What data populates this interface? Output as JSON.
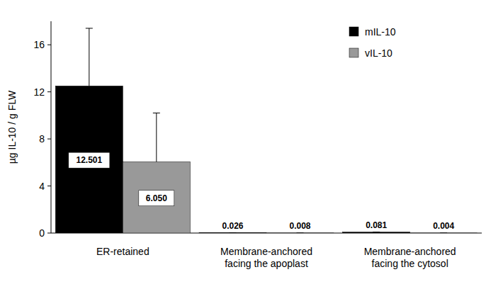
{
  "chart_data": {
    "type": "bar",
    "y_label": "µg IL-10 / g FLW",
    "categories": [
      "ER-retained",
      "Membrane-anchored facing the apoplast",
      "Membrane-anchored facing the cytosol"
    ],
    "series": [
      {
        "name": "mIL-10",
        "color": "#000000",
        "values": [
          12.501,
          0.026,
          0.081
        ],
        "value_labels": [
          "12.501",
          "0.026",
          "0.081"
        ],
        "errors": [
          4.9,
          0,
          0
        ]
      },
      {
        "name": "vIL-10",
        "color": "#999999",
        "values": [
          6.05,
          0.008,
          0.004
        ],
        "value_labels": [
          "6.050",
          "0.008",
          "0.004"
        ],
        "errors": [
          4.15,
          0,
          0
        ]
      }
    ],
    "ylim": [
      0,
      18
    ],
    "yticks": [
      0,
      4,
      8,
      12,
      16
    ],
    "grid": false,
    "legend": "upper right",
    "data_labels": true
  }
}
